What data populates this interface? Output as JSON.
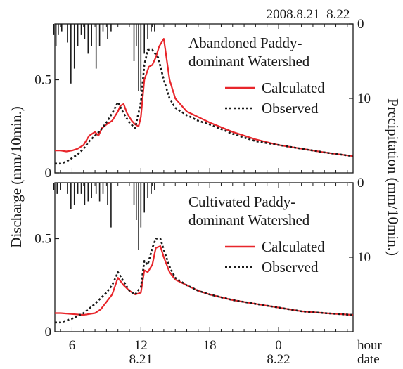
{
  "chart_data": [
    {
      "type": "line",
      "panel": "top",
      "title": "Abandoned Paddy-dominant Watershed",
      "title_lines": [
        "Abandoned Paddy-",
        "dominant Watershed"
      ],
      "ylim": [
        0,
        0.8
      ],
      "y2lim": [
        0,
        20
      ],
      "y2_inverted": true,
      "series": [
        {
          "name": "Calculated",
          "color": "#e8262b",
          "style": "solid",
          "x": [
            4.5,
            5.0,
            5.5,
            6.0,
            6.5,
            7.0,
            7.5,
            8.0,
            8.3,
            8.6,
            9.0,
            9.5,
            10.0,
            10.2,
            10.5,
            10.8,
            11.2,
            11.5,
            11.8,
            12.0,
            12.3,
            12.7,
            13.0,
            13.3,
            13.6,
            14.0,
            14.5,
            15,
            16,
            17,
            18,
            20,
            22,
            24,
            26,
            28,
            30.5
          ],
          "y": [
            0.12,
            0.12,
            0.115,
            0.12,
            0.13,
            0.15,
            0.2,
            0.22,
            0.2,
            0.24,
            0.26,
            0.28,
            0.33,
            0.36,
            0.37,
            0.32,
            0.28,
            0.26,
            0.25,
            0.3,
            0.5,
            0.57,
            0.58,
            0.62,
            0.68,
            0.72,
            0.5,
            0.4,
            0.33,
            0.3,
            0.27,
            0.22,
            0.18,
            0.15,
            0.13,
            0.11,
            0.09
          ]
        },
        {
          "name": "Observed",
          "color": "#1a1a1a",
          "style": "dotted",
          "x": [
            4.5,
            5.0,
            5.5,
            6.0,
            6.5,
            7.0,
            7.5,
            8.0,
            8.5,
            9.0,
            9.5,
            10.0,
            10.5,
            11.0,
            11.5,
            12.0,
            12.3,
            12.6,
            13.0,
            13.5,
            14.0,
            14.5,
            15,
            16,
            17,
            18,
            20,
            22,
            24,
            26,
            28,
            30.5
          ],
          "y": [
            0.05,
            0.05,
            0.06,
            0.08,
            0.1,
            0.13,
            0.17,
            0.2,
            0.23,
            0.27,
            0.32,
            0.38,
            0.32,
            0.27,
            0.24,
            0.38,
            0.58,
            0.66,
            0.66,
            0.62,
            0.5,
            0.4,
            0.35,
            0.31,
            0.28,
            0.26,
            0.21,
            0.17,
            0.15,
            0.13,
            0.11,
            0.09
          ]
        }
      ],
      "precipitation": {
        "name": "Precipitation",
        "x": [
          4.4,
          4.6,
          4.8,
          5.1,
          5.6,
          5.9,
          6.2,
          6.5,
          6.8,
          7.1,
          7.4,
          7.7,
          8.1,
          8.4,
          8.7,
          9.1,
          9.4,
          11.4,
          11.6,
          11.8,
          12.0,
          12.3,
          12.6,
          12.9,
          13.2
        ],
        "y": [
          1.5,
          3,
          1.5,
          1,
          2.5,
          8,
          6,
          3,
          1.5,
          2,
          4,
          3,
          6,
          3,
          1,
          2,
          1,
          5,
          3,
          9,
          9,
          4,
          2,
          1,
          1
        ]
      }
    },
    {
      "type": "line",
      "panel": "bottom",
      "title": "Cultivated Paddy-dominant Watershed",
      "title_lines": [
        "Cultivated Paddy-",
        "dominant Watershed"
      ],
      "ylim": [
        0,
        0.8
      ],
      "y2lim": [
        0,
        20
      ],
      "y2_inverted": true,
      "series": [
        {
          "name": "Calculated",
          "color": "#e8262b",
          "style": "solid",
          "x": [
            4.5,
            5.0,
            6.0,
            7.0,
            8.0,
            8.5,
            9.0,
            9.5,
            10.0,
            10.5,
            11.0,
            11.5,
            12.0,
            12.3,
            12.6,
            13.0,
            13.3,
            13.7,
            14.0,
            14.5,
            15,
            16,
            17,
            18,
            20,
            22,
            24,
            26,
            28,
            30.5
          ],
          "y": [
            0.1,
            0.1,
            0.095,
            0.09,
            0.1,
            0.12,
            0.16,
            0.2,
            0.29,
            0.25,
            0.22,
            0.2,
            0.21,
            0.33,
            0.32,
            0.36,
            0.45,
            0.46,
            0.4,
            0.32,
            0.28,
            0.25,
            0.22,
            0.2,
            0.17,
            0.15,
            0.13,
            0.11,
            0.1,
            0.09
          ]
        },
        {
          "name": "Observed",
          "color": "#1a1a1a",
          "style": "dotted",
          "x": [
            4.5,
            5.0,
            6.0,
            7.0,
            8.0,
            8.5,
            9.0,
            9.5,
            10.0,
            10.5,
            11.0,
            11.5,
            12.0,
            12.3,
            12.6,
            13.0,
            13.3,
            13.7,
            14.0,
            14.5,
            15,
            16,
            17,
            18,
            20,
            22,
            24,
            26,
            28,
            30.5
          ],
          "y": [
            0.05,
            0.05,
            0.07,
            0.1,
            0.15,
            0.18,
            0.21,
            0.25,
            0.32,
            0.27,
            0.22,
            0.2,
            0.24,
            0.38,
            0.36,
            0.45,
            0.5,
            0.5,
            0.44,
            0.35,
            0.29,
            0.25,
            0.22,
            0.2,
            0.17,
            0.15,
            0.13,
            0.11,
            0.1,
            0.09
          ]
        }
      ],
      "precipitation": {
        "name": "Precipitation",
        "x": [
          4.4,
          4.7,
          5.0,
          5.6,
          5.9,
          6.2,
          6.5,
          6.8,
          7.1,
          7.4,
          7.7,
          8.1,
          8.4,
          8.7,
          9.1,
          9.4,
          11.4,
          11.6,
          11.8,
          12.0,
          12.3,
          12.6,
          12.9,
          13.2
        ],
        "y": [
          1,
          1.5,
          1,
          1.5,
          3.5,
          3,
          1.5,
          1.5,
          3,
          2.5,
          2,
          1.5,
          2.5,
          1.5,
          3,
          6,
          3,
          5,
          9,
          6,
          4,
          2,
          1.5,
          1
        ]
      }
    }
  ],
  "figure": {
    "date_range_label": "2008.8.21–8.22",
    "ylabel": "Discharge (mm/10min.)",
    "y2label": "Precipitation (mm/10min.)",
    "y_ticks": [
      "0",
      "0.5"
    ],
    "y_tick_values": [
      0,
      0.5
    ],
    "y2_ticks": [
      "0",
      "10"
    ],
    "y2_tick_values": [
      0,
      10
    ],
    "x_ticks": [
      "6",
      "12",
      "18",
      "0"
    ],
    "x_tick_values": [
      6,
      12,
      18,
      24
    ],
    "x_range": [
      4.5,
      30.5
    ],
    "date_labels": [
      "8.21",
      "8.22"
    ],
    "date_label_x": [
      12,
      24
    ],
    "x_unit_label": "hour",
    "date_unit_label": "date",
    "legend_calculated": "Calculated",
    "legend_observed": "Observed"
  }
}
